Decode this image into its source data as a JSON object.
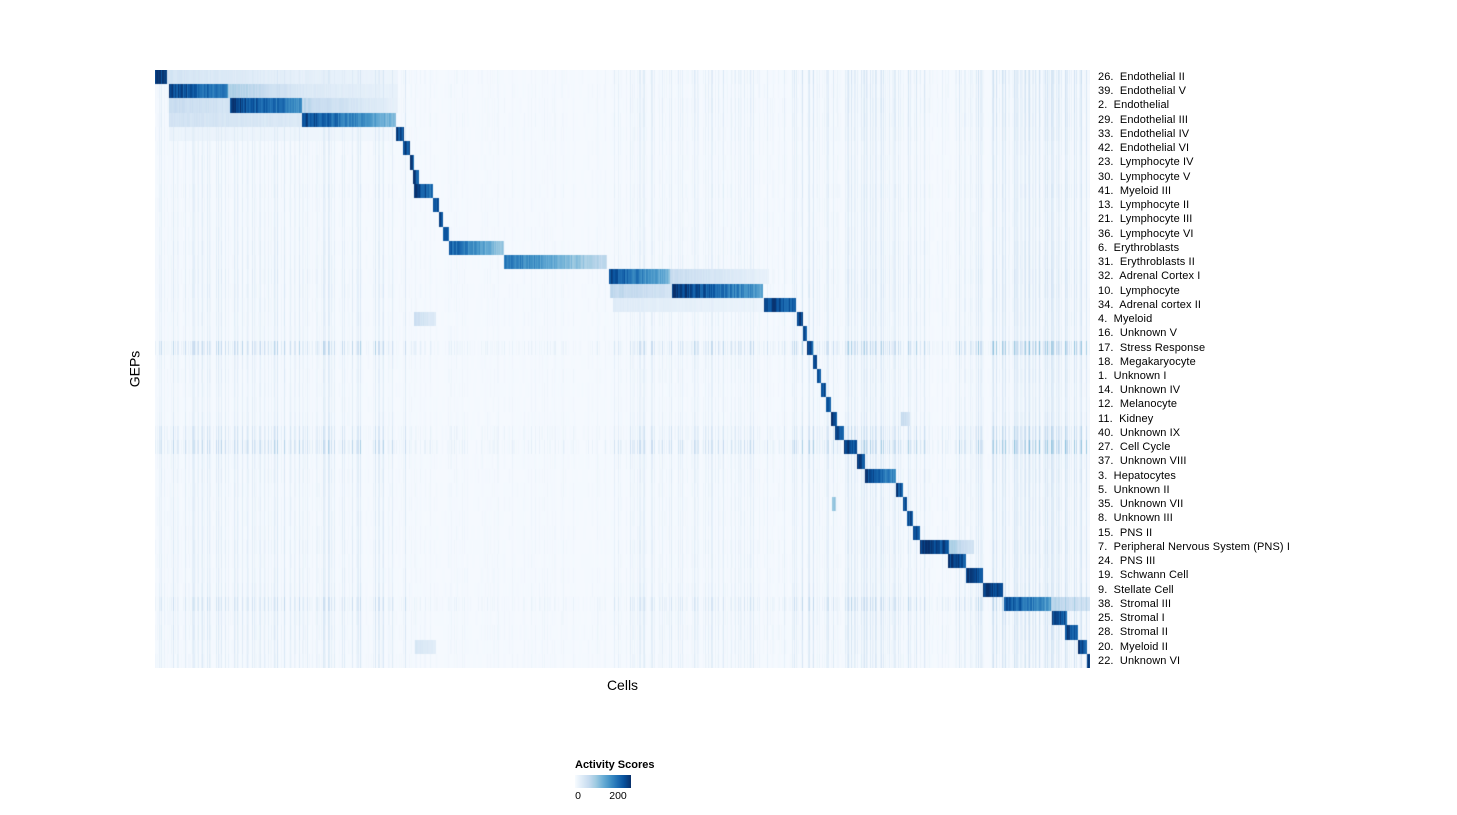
{
  "figure": {
    "ylabel": "GEPs",
    "xlabel": "Cells",
    "legend": {
      "title": "Activity Scores",
      "tick_labels": [
        "0",
        "200"
      ]
    }
  },
  "chart_data": {
    "type": "heatmap",
    "xlabel": "Cells",
    "ylabel": "GEPs",
    "colorbar": {
      "title": "Activity Scores",
      "tick_values": [
        0,
        200
      ],
      "value_range": [
        0,
        255
      ]
    },
    "colormap": {
      "name": "Blues",
      "stops": [
        "#f7fbff",
        "#deebf7",
        "#c6dbef",
        "#9ecae1",
        "#6baed6",
        "#4292c6",
        "#2171b5",
        "#08519c",
        "#08306b"
      ]
    },
    "column_noise_regions": [
      [
        0.0,
        0.27,
        0.38
      ],
      [
        0.27,
        0.486,
        0.1
      ],
      [
        0.486,
        0.66,
        0.3
      ],
      [
        0.66,
        0.83,
        0.45
      ],
      [
        0.83,
        0.86,
        0.22
      ],
      [
        0.86,
        1.0,
        0.5
      ]
    ],
    "rows": [
      {
        "label": "26.  Endothelial II",
        "noise": 0.35,
        "segments": [
          [
            0.0,
            0.012,
            250,
            245
          ],
          [
            0.012,
            0.16,
            45,
            20
          ],
          [
            0.16,
            0.26,
            25,
            12
          ]
        ]
      },
      {
        "label": "39.  Endothelial V",
        "noise": 0.3,
        "segments": [
          [
            0.014,
            0.078,
            240,
            170
          ],
          [
            0.078,
            0.16,
            85,
            35
          ],
          [
            0.16,
            0.26,
            35,
            18
          ]
        ]
      },
      {
        "label": "2.  Endothelial",
        "noise": 0.3,
        "segments": [
          [
            0.014,
            0.08,
            60,
            45
          ],
          [
            0.08,
            0.157,
            238,
            165
          ],
          [
            0.157,
            0.26,
            70,
            20
          ]
        ]
      },
      {
        "label": "29.  Endothelial III",
        "noise": 0.3,
        "segments": [
          [
            0.014,
            0.157,
            48,
            35
          ],
          [
            0.157,
            0.258,
            238,
            110
          ]
        ]
      },
      {
        "label": "33.  Endothelial IV",
        "noise": 0.25,
        "segments": [
          [
            0.014,
            0.258,
            16,
            8
          ],
          [
            0.258,
            0.266,
            245,
            215
          ]
        ]
      },
      {
        "label": "42.  Endothelial VI",
        "noise": 0.2,
        "segments": [
          [
            0.265,
            0.272,
            240,
            215
          ]
        ]
      },
      {
        "label": "23.  Lymphocyte IV",
        "noise": 0.2,
        "segments": [
          [
            0.272,
            0.277,
            235,
            210
          ]
        ]
      },
      {
        "label": "30.  Lymphocyte V",
        "noise": 0.2,
        "segments": [
          [
            0.276,
            0.282,
            240,
            215
          ]
        ]
      },
      {
        "label": "41.  Myeloid III",
        "noise": 0.25,
        "segments": [
          [
            0.277,
            0.297,
            245,
            195
          ]
        ]
      },
      {
        "label": "13.  Lymphocyte II",
        "noise": 0.2,
        "segments": [
          [
            0.297,
            0.303,
            235,
            205
          ]
        ]
      },
      {
        "label": "21.  Lymphocyte III",
        "noise": 0.2,
        "segments": [
          [
            0.303,
            0.308,
            235,
            205
          ]
        ]
      },
      {
        "label": "36.  Lymphocyte VI",
        "noise": 0.2,
        "segments": [
          [
            0.308,
            0.314,
            232,
            205
          ]
        ]
      },
      {
        "label": "6.  Erythroblasts",
        "noise": 0.25,
        "segments": [
          [
            0.314,
            0.373,
            215,
            95
          ]
        ]
      },
      {
        "label": "31.  Erythroblasts II",
        "noise": 0.25,
        "segments": [
          [
            0.373,
            0.483,
            195,
            65
          ]
        ]
      },
      {
        "label": "32.  Adrenal Cortex I",
        "noise": 0.3,
        "segments": [
          [
            0.486,
            0.551,
            232,
            115
          ],
          [
            0.551,
            0.657,
            60,
            18
          ]
        ]
      },
      {
        "label": "10.  Lymphocyte",
        "noise": 0.3,
        "segments": [
          [
            0.487,
            0.553,
            70,
            45
          ],
          [
            0.553,
            0.65,
            250,
            145
          ]
        ]
      },
      {
        "label": "34.  Adrenal cortex II",
        "noise": 0.25,
        "segments": [
          [
            0.49,
            0.652,
            30,
            14
          ],
          [
            0.652,
            0.686,
            245,
            195
          ]
        ]
      },
      {
        "label": "4.  Myeloid",
        "noise": 0.25,
        "segments": [
          [
            0.277,
            0.3,
            55,
            32
          ],
          [
            0.687,
            0.693,
            245,
            218
          ]
        ]
      },
      {
        "label": "16.  Unknown V",
        "noise": 0.2,
        "segments": [
          [
            0.693,
            0.698,
            238,
            212
          ]
        ]
      },
      {
        "label": "17.  Stress Response",
        "noise": 0.95,
        "segments": [
          [
            0.698,
            0.704,
            245,
            218
          ]
        ]
      },
      {
        "label": "18.  Megakaryocyte",
        "noise": 0.25,
        "segments": [
          [
            0.704,
            0.708,
            238,
            212
          ]
        ]
      },
      {
        "label": "1.  Unknown I",
        "noise": 0.25,
        "segments": [
          [
            0.708,
            0.712,
            234,
            208
          ]
        ]
      },
      {
        "label": "14.  Unknown IV",
        "noise": 0.2,
        "segments": [
          [
            0.712,
            0.718,
            238,
            212
          ]
        ]
      },
      {
        "label": "12.  Melanocyte",
        "noise": 0.2,
        "segments": [
          [
            0.718,
            0.723,
            242,
            215
          ]
        ]
      },
      {
        "label": "11.  Kidney",
        "noise": 0.25,
        "segments": [
          [
            0.723,
            0.73,
            238,
            212
          ],
          [
            0.798,
            0.808,
            65,
            40
          ]
        ]
      },
      {
        "label": "40.  Unknown IX",
        "noise": 0.6,
        "segments": [
          [
            0.728,
            0.737,
            234,
            208
          ]
        ]
      },
      {
        "label": "27.  Cell Cycle",
        "noise": 0.95,
        "segments": [
          [
            0.737,
            0.751,
            240,
            212
          ]
        ]
      },
      {
        "label": "37.  Unknown VIII",
        "noise": 0.3,
        "segments": [
          [
            0.751,
            0.76,
            244,
            212
          ]
        ]
      },
      {
        "label": "3.  Hepatocytes",
        "noise": 0.3,
        "segments": [
          [
            0.76,
            0.793,
            245,
            155
          ]
        ]
      },
      {
        "label": "5.  Unknown II",
        "noise": 0.25,
        "segments": [
          [
            0.793,
            0.8,
            238,
            212
          ]
        ]
      },
      {
        "label": "35.  Unknown VII",
        "noise": 0.25,
        "segments": [
          [
            0.724,
            0.729,
            110,
            85
          ],
          [
            0.8,
            0.805,
            234,
            208
          ]
        ]
      },
      {
        "label": "8.  Unknown III",
        "noise": 0.25,
        "segments": [
          [
            0.805,
            0.811,
            234,
            208
          ]
        ]
      },
      {
        "label": "15.  PNS II",
        "noise": 0.25,
        "segments": [
          [
            0.811,
            0.819,
            238,
            212
          ]
        ]
      },
      {
        "label": "7.  Peripheral Nervous System (PNS) I",
        "noise": 0.3,
        "segments": [
          [
            0.819,
            0.85,
            250,
            218
          ],
          [
            0.85,
            0.876,
            85,
            45
          ]
        ]
      },
      {
        "label": "24.  PNS III",
        "noise": 0.25,
        "segments": [
          [
            0.849,
            0.868,
            244,
            208
          ]
        ]
      },
      {
        "label": "19.  Schwann Cell",
        "noise": 0.25,
        "segments": [
          [
            0.868,
            0.886,
            248,
            218
          ]
        ]
      },
      {
        "label": "9.  Stellate Cell",
        "noise": 0.3,
        "segments": [
          [
            0.886,
            0.907,
            248,
            214
          ]
        ]
      },
      {
        "label": "38.  Stromal III",
        "noise": 0.7,
        "segments": [
          [
            0.908,
            0.959,
            232,
            145
          ],
          [
            0.959,
            1.0,
            75,
            45
          ]
        ]
      },
      {
        "label": "25.  Stromal I",
        "noise": 0.35,
        "segments": [
          [
            0.96,
            0.976,
            238,
            208
          ]
        ]
      },
      {
        "label": "28.  Stromal II",
        "noise": 0.35,
        "segments": [
          [
            0.974,
            0.988,
            238,
            208
          ]
        ]
      },
      {
        "label": "20.  Myeloid II",
        "noise": 0.3,
        "segments": [
          [
            0.278,
            0.3,
            42,
            26
          ],
          [
            0.988,
            0.997,
            244,
            218
          ]
        ]
      },
      {
        "label": "22.  Unknown VI",
        "noise": 0.3,
        "segments": [
          [
            0.997,
            1.0,
            250,
            232
          ]
        ]
      }
    ]
  }
}
